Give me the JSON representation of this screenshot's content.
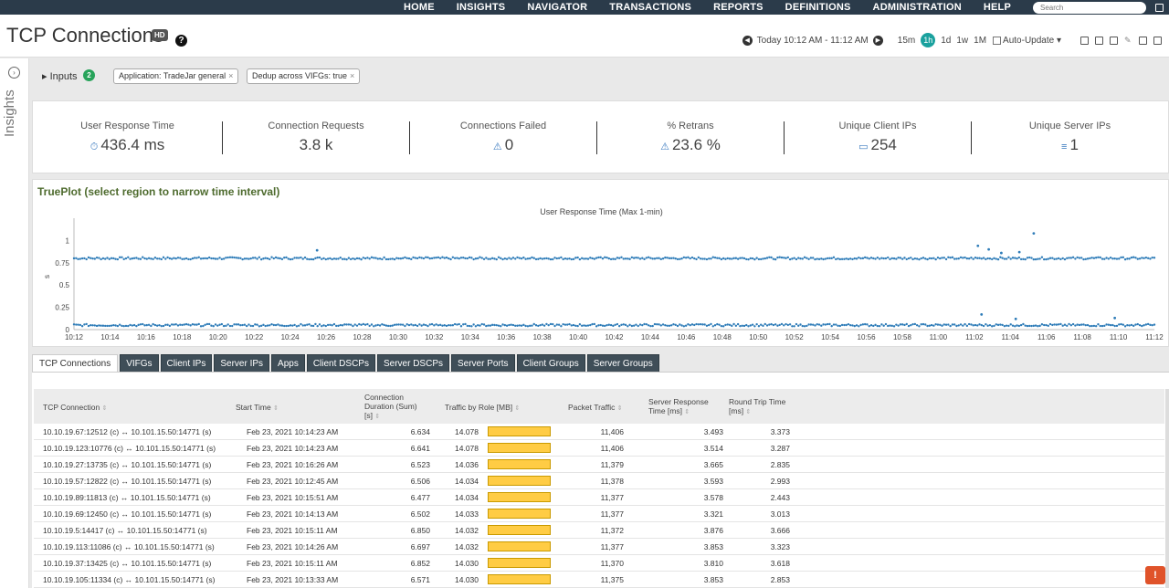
{
  "nav": {
    "items": [
      "HOME",
      "INSIGHTS",
      "NAVIGATOR",
      "TRANSACTIONS",
      "REPORTS",
      "DEFINITIONS",
      "ADMINISTRATION",
      "HELP"
    ],
    "search_placeholder": "Search"
  },
  "header": {
    "title": "TCP Connections",
    "hd_badge": "HD",
    "help": "?",
    "time_range": "Today 10:12 AM - 11:12 AM",
    "ranges": [
      "15m",
      "1h",
      "1d",
      "1w",
      "1M"
    ],
    "active_range": "1h",
    "auto_update": "Auto-Update ▾"
  },
  "rail": {
    "label": "Insights",
    "toggle": "›"
  },
  "inputs": {
    "label": "▸ Inputs",
    "count": "2",
    "chips": [
      "Application: TradeJar general",
      "Dedup across VIFGs: true"
    ]
  },
  "kpis": [
    {
      "label": "User Response Time",
      "icon": "⏱",
      "value": "436.4 ms"
    },
    {
      "label": "Connection Requests",
      "icon": "",
      "value": "3.8 k"
    },
    {
      "label": "Connections Failed",
      "icon": "⚠",
      "value": "0"
    },
    {
      "label": "% Retrans",
      "icon": "⚠",
      "value": "23.6 %"
    },
    {
      "label": "Unique Client IPs",
      "icon": "▭",
      "value": "254"
    },
    {
      "label": "Unique Server IPs",
      "icon": "≡",
      "value": "1"
    }
  ],
  "plot": {
    "heading": "TruePlot (select region to narrow time interval)",
    "subtitle": "User Response Time (Max 1-min)"
  },
  "chart_data": {
    "type": "scatter",
    "title": "User Response Time (Max 1-min)",
    "ylabel": "s",
    "ylim": [
      0,
      1.25
    ],
    "yticks": [
      "0",
      "0.25",
      "0.5",
      "0.75",
      "1"
    ],
    "xticks": [
      "10:12",
      "10:14",
      "10:16",
      "10:18",
      "10:20",
      "10:22",
      "10:24",
      "10:26",
      "10:28",
      "10:30",
      "10:32",
      "10:34",
      "10:36",
      "10:38",
      "10:40",
      "10:42",
      "10:44",
      "10:46",
      "10:48",
      "10:50",
      "10:52",
      "10:54",
      "10:56",
      "10:58",
      "11:00",
      "11:02",
      "11:04",
      "11:06",
      "11:08",
      "11:10",
      "11:12"
    ],
    "series": [
      {
        "band_value": 0.8,
        "range": [
          "10:12",
          "11:12"
        ]
      },
      {
        "band_value": 0.05,
        "range": [
          "10:12",
          "11:12"
        ]
      }
    ],
    "outliers": [
      {
        "x": "10:25.5",
        "y": 0.89
      },
      {
        "x": "11:02.2",
        "y": 0.94
      },
      {
        "x": "11:02.8",
        "y": 0.9
      },
      {
        "x": "11:03.5",
        "y": 0.86
      },
      {
        "x": "11:04.5",
        "y": 0.87
      },
      {
        "x": "11:05.3",
        "y": 1.08
      },
      {
        "x": "11:02.4",
        "y": 0.17
      },
      {
        "x": "11:04.3",
        "y": 0.12
      },
      {
        "x": "11:09.8",
        "y": 0.13
      }
    ]
  },
  "tabs": [
    "TCP Connections",
    "VIFGs",
    "Client IPs",
    "Server IPs",
    "Apps",
    "Client DSCPs",
    "Server DSCPs",
    "Server Ports",
    "Client Groups",
    "Server Groups"
  ],
  "table": {
    "headers": {
      "conn": "TCP Connection",
      "start": "Start Time",
      "dur1": "Connection",
      "dur2": "Duration (Sum)",
      "dur3": "[s]",
      "traffic": "Traffic by Role [MB]",
      "packets": "Packet Traffic",
      "srt1": "Server Response",
      "srt2": "Time [ms]",
      "rtt1": "Round Trip Time",
      "rtt2": "[ms]"
    },
    "rows": [
      {
        "conn": "10.10.19.67:12512 (c) ↔ 10.101.15.50:14771 (s)",
        "start": "Feb 23, 2021 10:14:23 AM",
        "dur": "6.634",
        "traffic": "14.078",
        "fill": 1.0,
        "packets": "11,406",
        "srt": "3.493",
        "rtt": "3.373"
      },
      {
        "conn": "10.10.19.123:10776 (c) ↔ 10.101.15.50:14771 (s)",
        "start": "Feb 23, 2021 10:14:23 AM",
        "dur": "6.641",
        "traffic": "14.078",
        "fill": 1.0,
        "packets": "11,406",
        "srt": "3.514",
        "rtt": "3.287"
      },
      {
        "conn": "10.10.19.27:13735 (c) ↔ 10.101.15.50:14771 (s)",
        "start": "Feb 23, 2021 10:16:26 AM",
        "dur": "6.523",
        "traffic": "14.036",
        "fill": 0.997,
        "packets": "11,379",
        "srt": "3.665",
        "rtt": "2.835"
      },
      {
        "conn": "10.10.19.57:12822 (c) ↔ 10.101.15.50:14771 (s)",
        "start": "Feb 23, 2021 10:12:45 AM",
        "dur": "6.506",
        "traffic": "14.034",
        "fill": 0.997,
        "packets": "11,378",
        "srt": "3.593",
        "rtt": "2.993"
      },
      {
        "conn": "10.10.19.89:11813 (c) ↔ 10.101.15.50:14771 (s)",
        "start": "Feb 23, 2021 10:15:51 AM",
        "dur": "6.477",
        "traffic": "14.034",
        "fill": 0.997,
        "packets": "11,377",
        "srt": "3.578",
        "rtt": "2.443"
      },
      {
        "conn": "10.10.19.69:12450 (c) ↔ 10.101.15.50:14771 (s)",
        "start": "Feb 23, 2021 10:14:13 AM",
        "dur": "6.502",
        "traffic": "14.033",
        "fill": 0.997,
        "packets": "11,377",
        "srt": "3.321",
        "rtt": "3.013"
      },
      {
        "conn": "10.10.19.5:14417 (c) ↔ 10.101.15.50:14771 (s)",
        "start": "Feb 23, 2021 10:15:11 AM",
        "dur": "6.850",
        "traffic": "14.032",
        "fill": 0.997,
        "packets": "11,372",
        "srt": "3.876",
        "rtt": "3.666"
      },
      {
        "conn": "10.10.19.113:11086 (c) ↔ 10.101.15.50:14771 (s)",
        "start": "Feb 23, 2021 10:14:26 AM",
        "dur": "6.697",
        "traffic": "14.032",
        "fill": 0.997,
        "packets": "11,377",
        "srt": "3.853",
        "rtt": "3.323"
      },
      {
        "conn": "10.10.19.37:13425 (c) ↔ 10.101.15.50:14771 (s)",
        "start": "Feb 23, 2021 10:15:11 AM",
        "dur": "6.852",
        "traffic": "14.030",
        "fill": 0.997,
        "packets": "11,370",
        "srt": "3.810",
        "rtt": "3.618"
      },
      {
        "conn": "10.10.19.105:11334 (c) ↔ 10.101.15.50:14771 (s)",
        "start": "Feb 23, 2021 10:13:33 AM",
        "dur": "6.571",
        "traffic": "14.030",
        "fill": 0.997,
        "packets": "11,375",
        "srt": "3.853",
        "rtt": "2.853"
      }
    ]
  },
  "feedback": "!",
  "colors": {
    "nav_bg": "#2b3b4a",
    "accent": "#1aa19e",
    "plot_points": "#2e7cb8",
    "bar_fill": "#ffcc44",
    "heading_green": "#4e6b2e"
  }
}
